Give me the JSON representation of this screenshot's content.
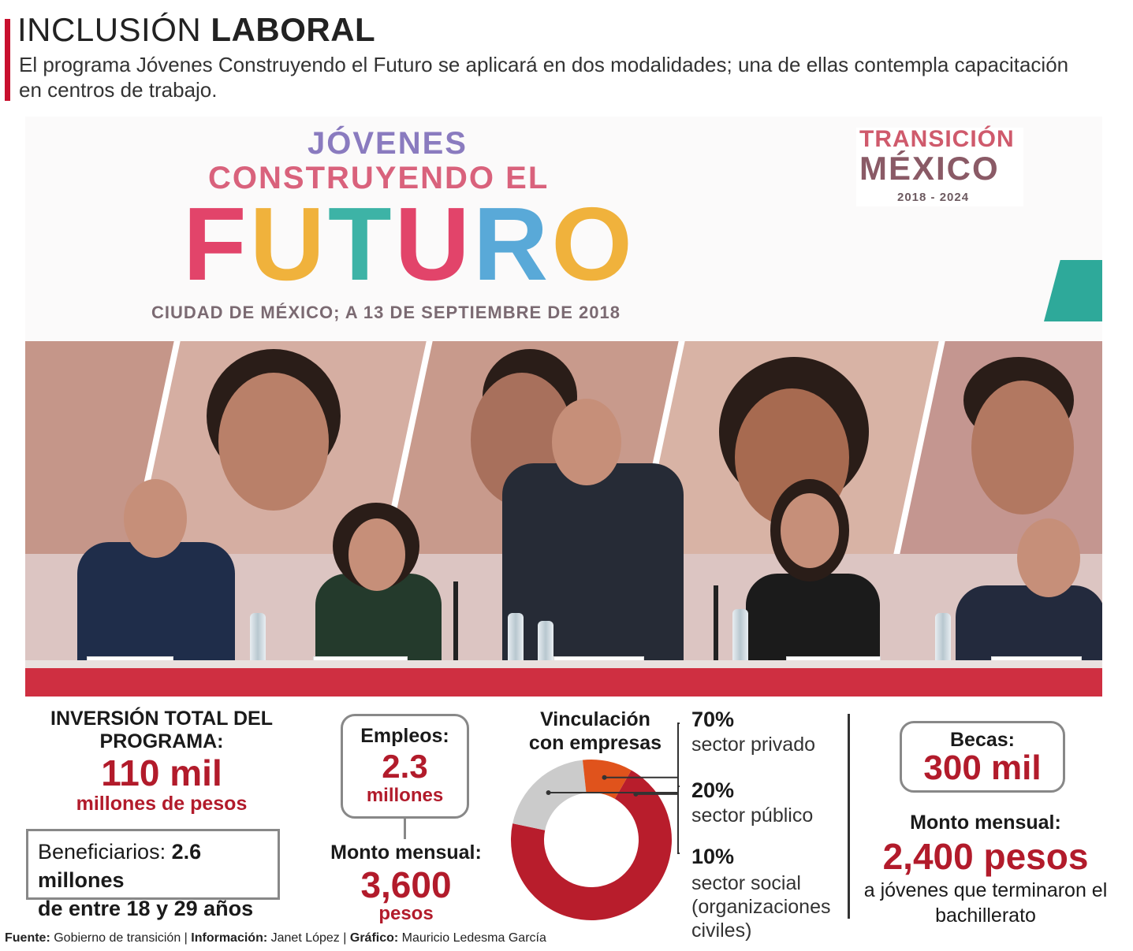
{
  "header": {
    "title_light": "INCLUSIÓN",
    "title_bold": "LABORAL",
    "subtitle": "El programa Jóvenes Construyendo el Futuro se aplicará en dos modalidades; una de ellas contempla capacitación en centros de trabajo."
  },
  "photo": {
    "logo_line1": "JÓVENES",
    "logo_line2": "CONSTRUYENDO EL",
    "logo_letters": [
      "F",
      "U",
      "T",
      "U",
      "R",
      "O"
    ],
    "logo_city_date": "CIUDAD DE MÉXICO; A 13 DE SEPTIEMBRE DE 2018",
    "transition_line1": "TRANSICIÓN",
    "transition_line2": "MÉXICO",
    "transition_years": "2018 - 2024"
  },
  "investment": {
    "label": "INVERSIÓN TOTAL DEL PROGRAMA:",
    "value": "110 mil",
    "unit": "millones de pesos"
  },
  "beneficiaries": {
    "label": "Beneficiarios:",
    "value": "2.6 millones",
    "age_range": "de entre 18 y 29 años"
  },
  "jobs": {
    "label": "Empleos:",
    "value": "2.3",
    "unit": "millones",
    "monthly_label": "Monto mensual:",
    "monthly_value": "3,600",
    "monthly_unit": "pesos"
  },
  "linkage": {
    "title": "Vinculación con empresas",
    "segments": [
      {
        "pct_label": "70%",
        "desc": "sector privado",
        "value": 70,
        "color": "#b81d2c"
      },
      {
        "pct_label": "20%",
        "desc": "sector público",
        "value": 20,
        "color": "#cbcbcb"
      },
      {
        "pct_label": "10%",
        "desc": "sector social (organizaciones civiles)",
        "value": 10,
        "color": "#e0531c"
      }
    ]
  },
  "scholarships": {
    "label": "Becas:",
    "value": "300 mil",
    "monthly_label": "Monto mensual:",
    "monthly_value": "2,400 pesos",
    "monthly_desc": "a jóvenes que terminaron el bachillerato"
  },
  "source": {
    "source_label": "Fuente:",
    "source_value": "Gobierno de transición",
    "info_label": "Información:",
    "info_value": "Janet López",
    "graphic_label": "Gráfico:",
    "graphic_value": "Mauricio Ledesma García",
    "separator": "|"
  }
}
